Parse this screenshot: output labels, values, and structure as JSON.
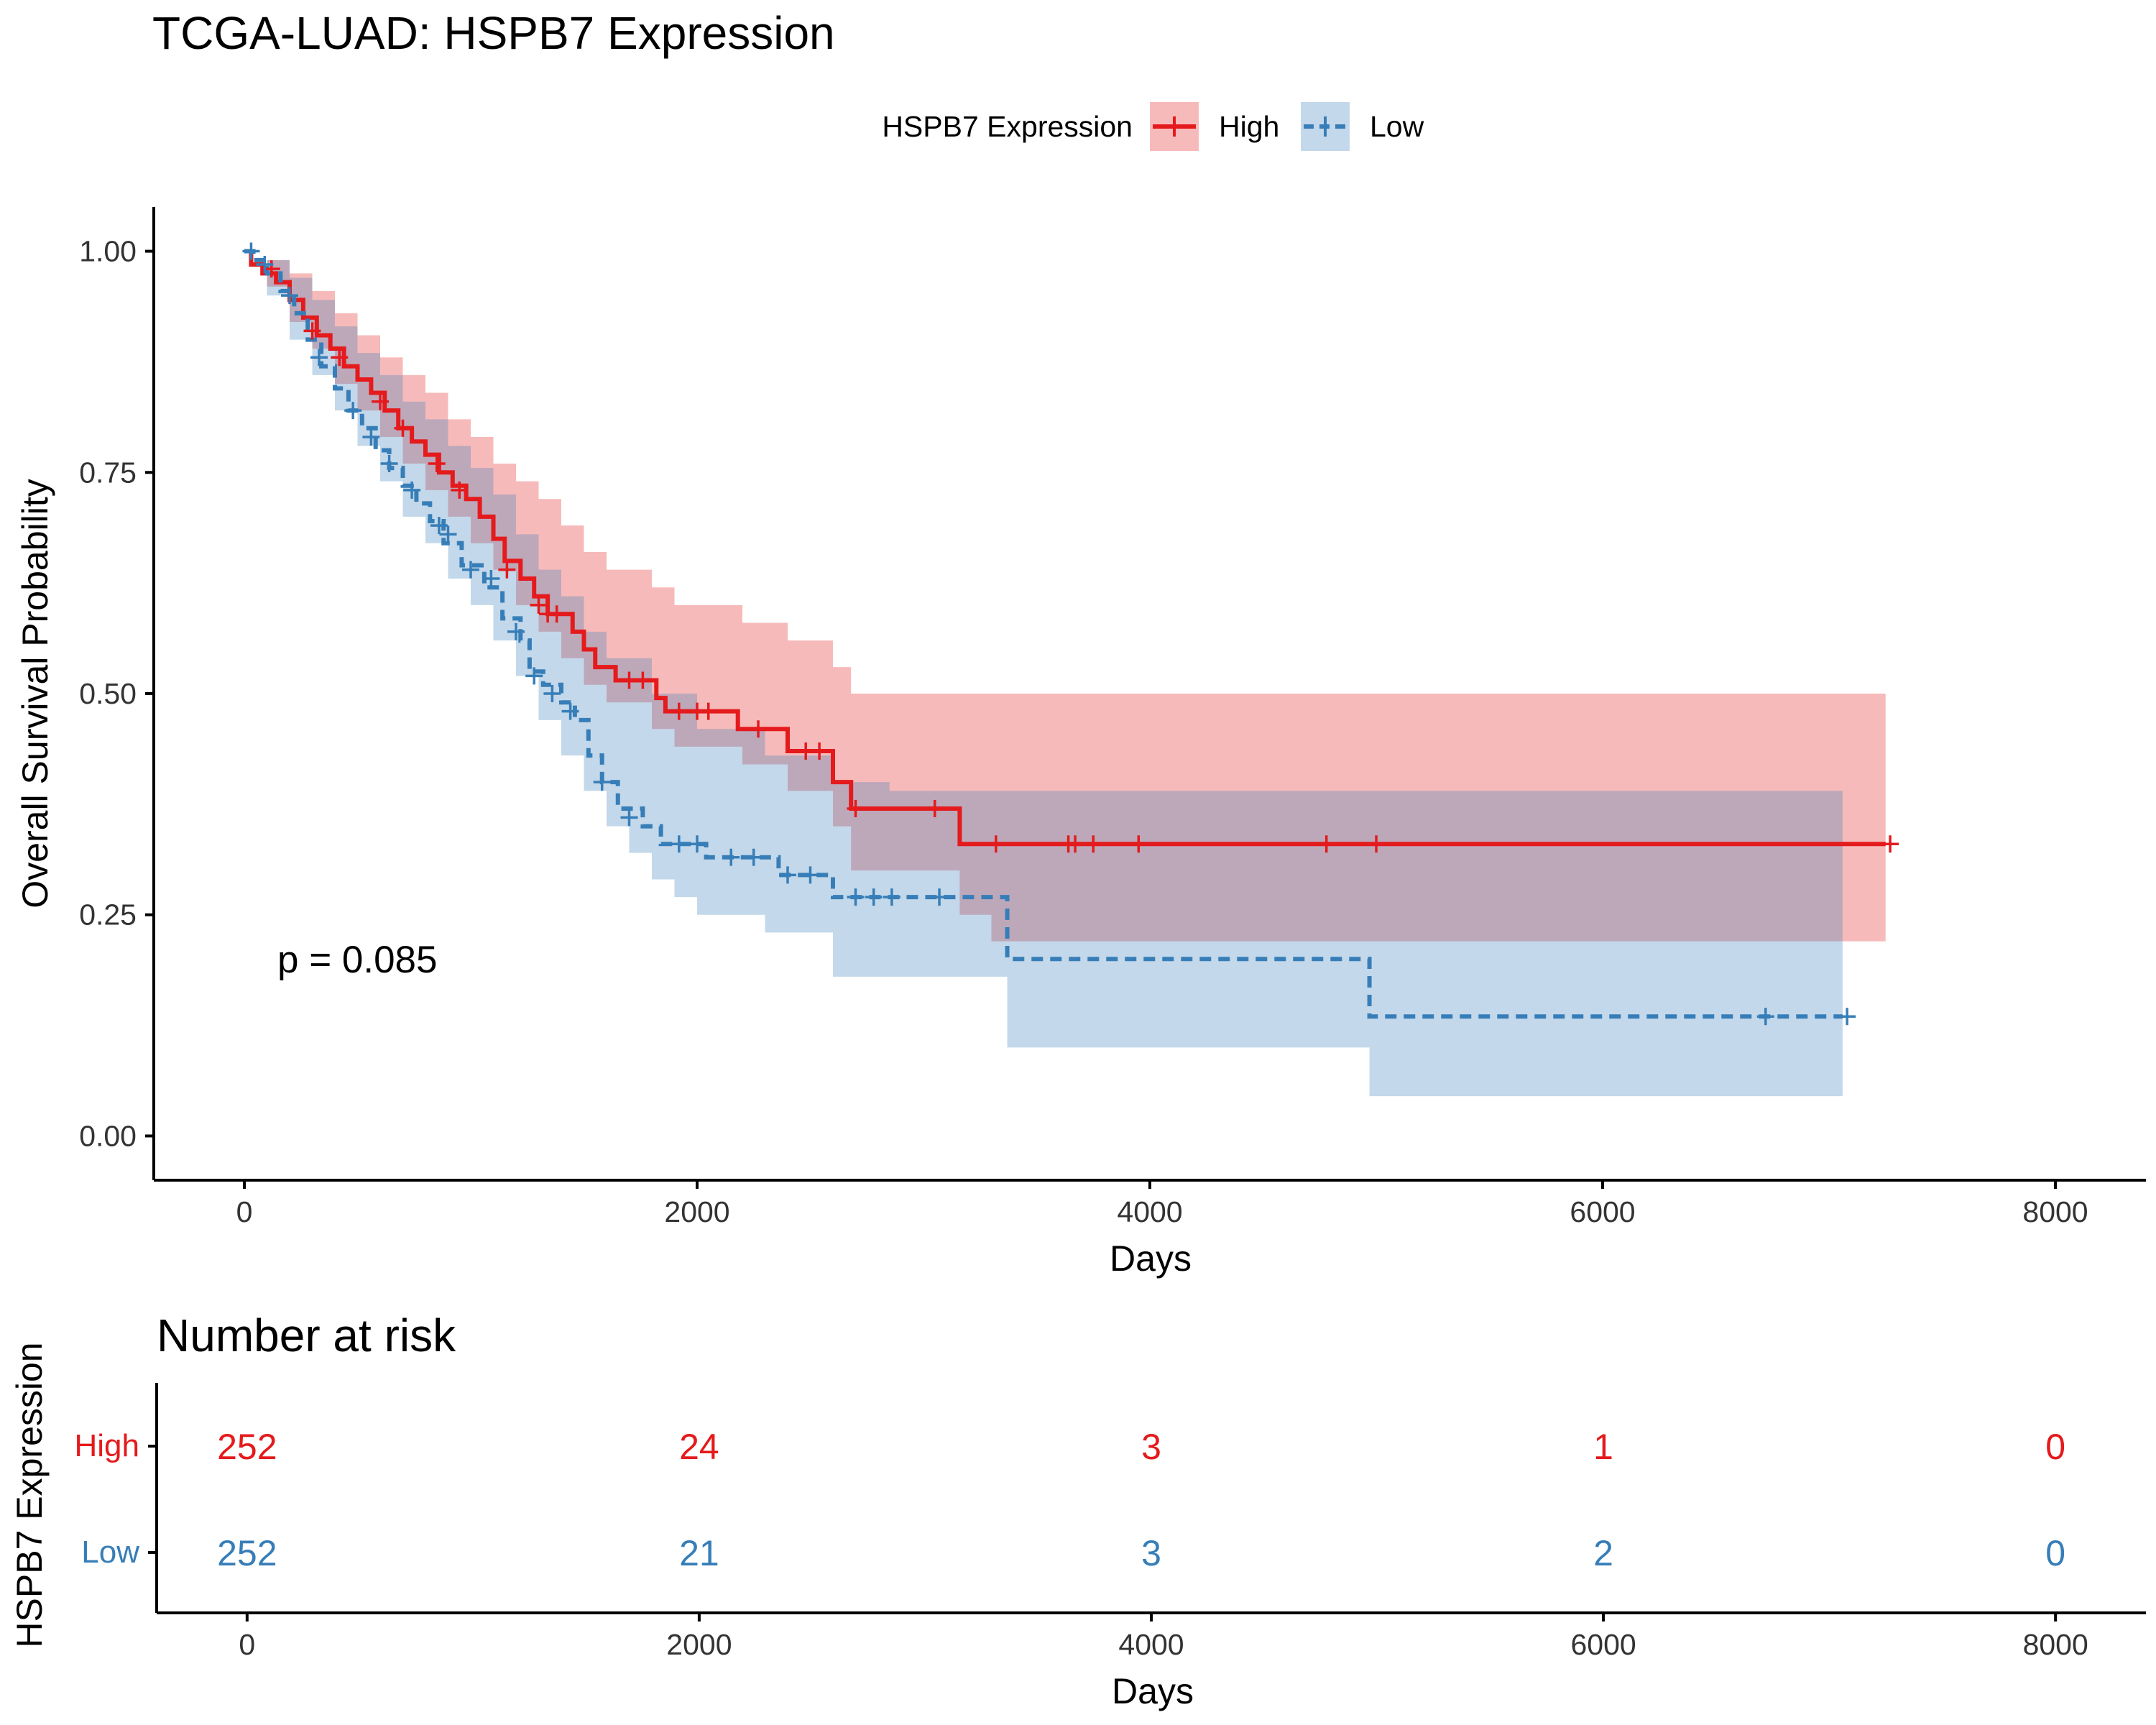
{
  "chart_data": [
    {
      "type": "line",
      "subtype": "kaplan-meier",
      "title": "TCGA-LUAD: HSPB7 Expression",
      "xlabel": "Days",
      "ylabel": "Overall Survival Probability",
      "xlim": [
        -400,
        8400
      ],
      "ylim": [
        -0.05,
        1.05
      ],
      "xticks": [
        "0",
        "2000",
        "4000",
        "6000",
        "8000"
      ],
      "yticks": [
        "0.00",
        "0.25",
        "0.50",
        "0.75",
        "1.00"
      ],
      "grid": false,
      "legend": {
        "title": "HSPB7 Expression",
        "position": "top",
        "entries": [
          "High",
          "Low"
        ]
      },
      "annotation": "p = 0.085",
      "series": [
        {
          "name": "High",
          "color": "#E41A1C",
          "line_style": "solid",
          "steps": [
            [
              0,
              1.0
            ],
            [
              30,
              0.985
            ],
            [
              80,
              0.975
            ],
            [
              140,
              0.965
            ],
            [
              200,
              0.945
            ],
            [
              260,
              0.925
            ],
            [
              320,
              0.905
            ],
            [
              380,
              0.89
            ],
            [
              440,
              0.87
            ],
            [
              500,
              0.855
            ],
            [
              560,
              0.84
            ],
            [
              620,
              0.82
            ],
            [
              680,
              0.8
            ],
            [
              740,
              0.785
            ],
            [
              800,
              0.77
            ],
            [
              860,
              0.75
            ],
            [
              920,
              0.735
            ],
            [
              980,
              0.72
            ],
            [
              1040,
              0.7
            ],
            [
              1100,
              0.675
            ],
            [
              1150,
              0.65
            ],
            [
              1220,
              0.63
            ],
            [
              1280,
              0.61
            ],
            [
              1340,
              0.59
            ],
            [
              1450,
              0.57
            ],
            [
              1500,
              0.55
            ],
            [
              1550,
              0.53
            ],
            [
              1640,
              0.515
            ],
            [
              1820,
              0.495
            ],
            [
              1860,
              0.48
            ],
            [
              2180,
              0.46
            ],
            [
              2400,
              0.435
            ],
            [
              2600,
              0.4
            ],
            [
              2680,
              0.37
            ],
            [
              3160,
              0.33
            ],
            [
              7250,
              0.33
            ]
          ],
          "lower": [
            [
              0,
              1.0
            ],
            [
              100,
              0.96
            ],
            [
              200,
              0.92
            ],
            [
              300,
              0.89
            ],
            [
              400,
              0.85
            ],
            [
              500,
              0.82
            ],
            [
              600,
              0.79
            ],
            [
              700,
              0.76
            ],
            [
              800,
              0.73
            ],
            [
              900,
              0.7
            ],
            [
              1000,
              0.67
            ],
            [
              1100,
              0.64
            ],
            [
              1200,
              0.6
            ],
            [
              1300,
              0.57
            ],
            [
              1400,
              0.54
            ],
            [
              1500,
              0.51
            ],
            [
              1600,
              0.49
            ],
            [
              1800,
              0.46
            ],
            [
              1900,
              0.44
            ],
            [
              2200,
              0.42
            ],
            [
              2400,
              0.39
            ],
            [
              2600,
              0.35
            ],
            [
              2680,
              0.3
            ],
            [
              3160,
              0.25
            ],
            [
              3300,
              0.22
            ],
            [
              7250,
              0.22
            ]
          ],
          "upper": [
            [
              0,
              1.0
            ],
            [
              100,
              0.99
            ],
            [
              200,
              0.975
            ],
            [
              300,
              0.955
            ],
            [
              400,
              0.93
            ],
            [
              500,
              0.905
            ],
            [
              600,
              0.88
            ],
            [
              700,
              0.86
            ],
            [
              800,
              0.84
            ],
            [
              900,
              0.81
            ],
            [
              1000,
              0.79
            ],
            [
              1100,
              0.76
            ],
            [
              1200,
              0.74
            ],
            [
              1300,
              0.72
            ],
            [
              1400,
              0.69
            ],
            [
              1500,
              0.66
            ],
            [
              1600,
              0.64
            ],
            [
              1800,
              0.62
            ],
            [
              1900,
              0.6
            ],
            [
              2200,
              0.58
            ],
            [
              2400,
              0.56
            ],
            [
              2600,
              0.53
            ],
            [
              2680,
              0.5
            ],
            [
              3160,
              0.5
            ],
            [
              7250,
              0.5
            ]
          ],
          "censored": [
            [
              120,
              0.98
            ],
            [
              300,
              0.91
            ],
            [
              420,
              0.88
            ],
            [
              600,
              0.83
            ],
            [
              700,
              0.8
            ],
            [
              850,
              0.76
            ],
            [
              950,
              0.73
            ],
            [
              1160,
              0.64
            ],
            [
              1300,
              0.6
            ],
            [
              1340,
              0.59
            ],
            [
              1380,
              0.59
            ],
            [
              1700,
              0.515
            ],
            [
              1760,
              0.515
            ],
            [
              1920,
              0.48
            ],
            [
              2000,
              0.48
            ],
            [
              2050,
              0.48
            ],
            [
              2270,
              0.46
            ],
            [
              2480,
              0.435
            ],
            [
              2540,
              0.435
            ],
            [
              2700,
              0.37
            ],
            [
              3050,
              0.37
            ],
            [
              3320,
              0.33
            ],
            [
              3640,
              0.33
            ],
            [
              3670,
              0.33
            ],
            [
              3750,
              0.33
            ],
            [
              3950,
              0.33
            ],
            [
              4780,
              0.33
            ],
            [
              5000,
              0.33
            ],
            [
              7270,
              0.33
            ]
          ]
        },
        {
          "name": "Low",
          "color": "#377EB8",
          "line_style": "dashed",
          "steps": [
            [
              0,
              1.0
            ],
            [
              40,
              0.99
            ],
            [
              100,
              0.975
            ],
            [
              160,
              0.955
            ],
            [
              220,
              0.93
            ],
            [
              280,
              0.9
            ],
            [
              340,
              0.87
            ],
            [
              400,
              0.845
            ],
            [
              460,
              0.82
            ],
            [
              520,
              0.8
            ],
            [
              580,
              0.775
            ],
            [
              640,
              0.755
            ],
            [
              700,
              0.735
            ],
            [
              760,
              0.715
            ],
            [
              820,
              0.695
            ],
            [
              880,
              0.67
            ],
            [
              960,
              0.645
            ],
            [
              1060,
              0.62
            ],
            [
              1140,
              0.585
            ],
            [
              1220,
              0.56
            ],
            [
              1260,
              0.525
            ],
            [
              1320,
              0.51
            ],
            [
              1400,
              0.49
            ],
            [
              1460,
              0.47
            ],
            [
              1520,
              0.43
            ],
            [
              1580,
              0.4
            ],
            [
              1650,
              0.37
            ],
            [
              1760,
              0.35
            ],
            [
              1840,
              0.33
            ],
            [
              2040,
              0.315
            ],
            [
              2360,
              0.295
            ],
            [
              2600,
              0.27
            ],
            [
              2850,
              0.27
            ],
            [
              3370,
              0.2
            ],
            [
              4970,
              0.135
            ],
            [
              7060,
              0.135
            ]
          ],
          "lower": [
            [
              0,
              1.0
            ],
            [
              100,
              0.95
            ],
            [
              200,
              0.9
            ],
            [
              300,
              0.86
            ],
            [
              400,
              0.82
            ],
            [
              500,
              0.78
            ],
            [
              600,
              0.74
            ],
            [
              700,
              0.7
            ],
            [
              800,
              0.67
            ],
            [
              900,
              0.63
            ],
            [
              1000,
              0.6
            ],
            [
              1100,
              0.56
            ],
            [
              1200,
              0.52
            ],
            [
              1300,
              0.47
            ],
            [
              1400,
              0.43
            ],
            [
              1500,
              0.39
            ],
            [
              1600,
              0.35
            ],
            [
              1700,
              0.32
            ],
            [
              1800,
              0.29
            ],
            [
              1900,
              0.27
            ],
            [
              2000,
              0.25
            ],
            [
              2300,
              0.23
            ],
            [
              2600,
              0.18
            ],
            [
              3370,
              0.1
            ],
            [
              4970,
              0.045
            ],
            [
              7060,
              0.045
            ]
          ],
          "upper": [
            [
              0,
              1.0
            ],
            [
              100,
              0.99
            ],
            [
              200,
              0.97
            ],
            [
              300,
              0.945
            ],
            [
              400,
              0.915
            ],
            [
              500,
              0.885
            ],
            [
              600,
              0.86
            ],
            [
              700,
              0.83
            ],
            [
              800,
              0.81
            ],
            [
              900,
              0.78
            ],
            [
              1000,
              0.755
            ],
            [
              1100,
              0.725
            ],
            [
              1200,
              0.68
            ],
            [
              1300,
              0.64
            ],
            [
              1400,
              0.61
            ],
            [
              1500,
              0.57
            ],
            [
              1600,
              0.54
            ],
            [
              1800,
              0.5
            ],
            [
              2000,
              0.46
            ],
            [
              2300,
              0.43
            ],
            [
              2600,
              0.4
            ],
            [
              2850,
              0.39
            ],
            [
              3370,
              0.39
            ],
            [
              4970,
              0.39
            ],
            [
              7060,
              0.38
            ]
          ],
          "censored": [
            [
              30,
              1.0
            ],
            [
              90,
              0.985
            ],
            [
              200,
              0.95
            ],
            [
              330,
              0.88
            ],
            [
              480,
              0.82
            ],
            [
              560,
              0.79
            ],
            [
              640,
              0.76
            ],
            [
              740,
              0.73
            ],
            [
              860,
              0.69
            ],
            [
              900,
              0.68
            ],
            [
              1000,
              0.64
            ],
            [
              1090,
              0.63
            ],
            [
              1200,
              0.57
            ],
            [
              1280,
              0.52
            ],
            [
              1360,
              0.5
            ],
            [
              1440,
              0.48
            ],
            [
              1580,
              0.4
            ],
            [
              1700,
              0.36
            ],
            [
              1920,
              0.33
            ],
            [
              2000,
              0.33
            ],
            [
              2150,
              0.315
            ],
            [
              2250,
              0.315
            ],
            [
              2400,
              0.295
            ],
            [
              2500,
              0.295
            ],
            [
              2700,
              0.27
            ],
            [
              2780,
              0.27
            ],
            [
              2860,
              0.27
            ],
            [
              3070,
              0.27
            ],
            [
              6720,
              0.135
            ],
            [
              7080,
              0.135
            ]
          ]
        }
      ]
    },
    {
      "type": "table",
      "title": "Number at risk",
      "ylabel": "HSPB7 Expression",
      "xlabel": "Days",
      "xlim": [
        -400,
        8400
      ],
      "xticks": [
        "0",
        "2000",
        "4000",
        "6000",
        "8000"
      ],
      "time_points": [
        0,
        2000,
        4000,
        6000,
        8000
      ],
      "rows": [
        {
          "name": "High",
          "color": "#E41A1C",
          "values": [
            "252",
            "24",
            "3",
            "1",
            "0"
          ]
        },
        {
          "name": "Low",
          "color": "#377EB8",
          "values": [
            "252",
            "21",
            "3",
            "2",
            "0"
          ]
        }
      ]
    }
  ]
}
